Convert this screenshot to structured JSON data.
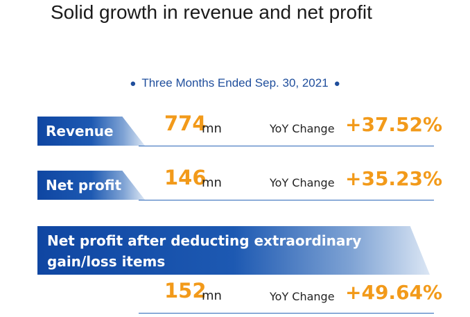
{
  "title": "Solid growth in revenue and net profit",
  "period": "Three Months Ended Sep. 30, 2021",
  "metrics": [
    {
      "label": "Revenue",
      "value": "774",
      "unit": "mn",
      "yoy_label": "YoY Change",
      "yoy_value": "+37.52%"
    },
    {
      "label": "Net profit",
      "value": "146",
      "unit": "mn",
      "yoy_label": "YoY Change",
      "yoy_value": "+35.23%"
    },
    {
      "label": "Net profit after deducting extraordinary gain/loss items",
      "value": "152",
      "unit": "mn",
      "yoy_label": "YoY Change",
      "yoy_value": "+49.64%"
    }
  ],
  "colors": {
    "accent_orange": "#f29a1a",
    "brand_blue": "#0f46a2",
    "title_text": "#1a1a1a"
  }
}
